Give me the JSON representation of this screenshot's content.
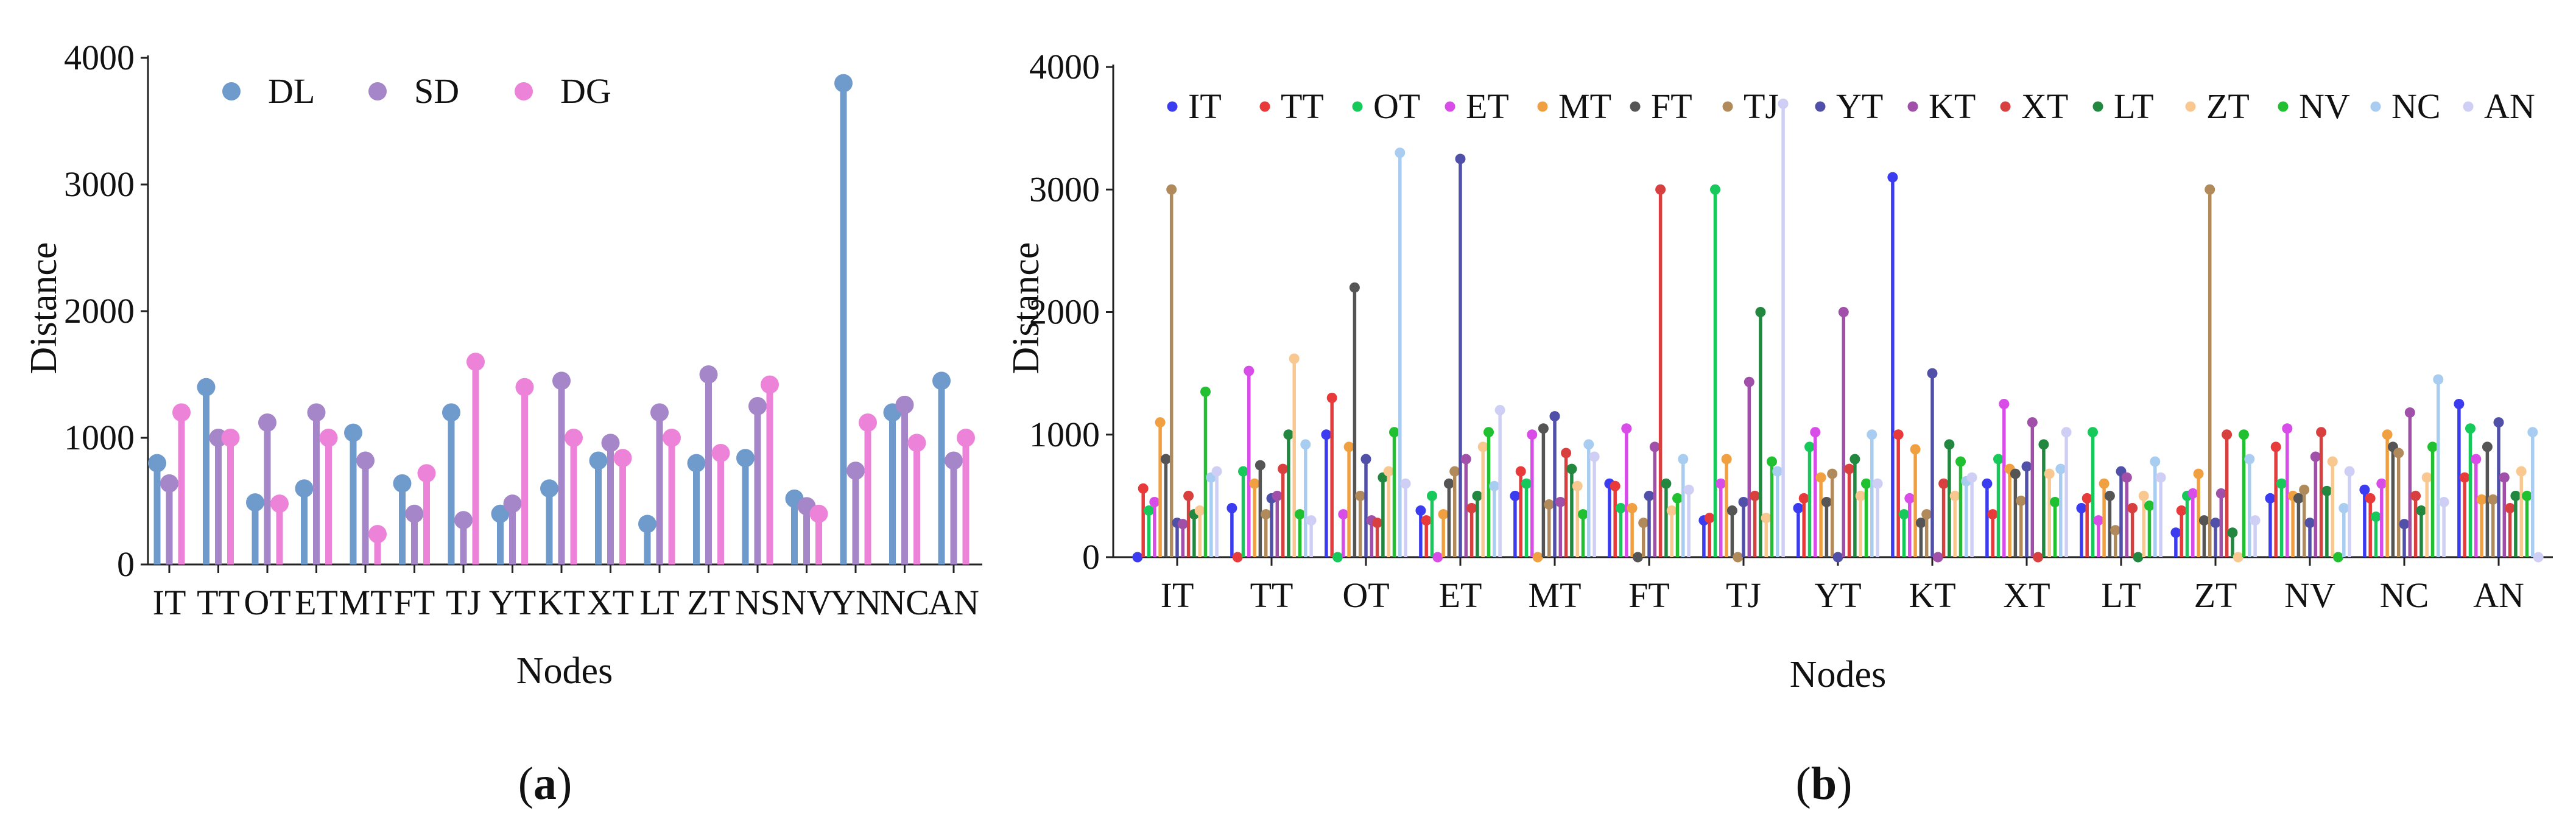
{
  "captions": {
    "a": {
      "open": "(",
      "letter": "a",
      "close": ")"
    },
    "b": {
      "open": "(",
      "letter": "b",
      "close": ")"
    }
  },
  "chart_data": [
    {
      "id": "a",
      "type": "lollipop",
      "title": "",
      "xlabel": "Nodes",
      "ylabel": "Distance",
      "ylim": [
        0,
        4000
      ],
      "yticks": [
        0,
        1000,
        2000,
        3000,
        4000
      ],
      "grid": false,
      "legend_position": "top-left",
      "categories": [
        "IT",
        "TT",
        "OT",
        "ET",
        "MT",
        "FT",
        "TJ",
        "YT",
        "KT",
        "XT",
        "LT",
        "ZT",
        "NS",
        "NV",
        "YN",
        "NC",
        "AN"
      ],
      "series": [
        {
          "name": "DL",
          "color": "#6f9bcc",
          "values": [
            800,
            1400,
            490,
            600,
            1040,
            640,
            1200,
            400,
            600,
            820,
            320,
            800,
            840,
            520,
            3800,
            1200,
            1450
          ]
        },
        {
          "name": "SD",
          "color": "#a586c8",
          "values": [
            640,
            1000,
            1120,
            1200,
            820,
            400,
            350,
            480,
            1450,
            960,
            1200,
            1500,
            1250,
            460,
            740,
            1260,
            820
          ]
        },
        {
          "name": "DG",
          "color": "#ec83d8",
          "values": [
            1200,
            1000,
            480,
            1000,
            240,
            720,
            1600,
            1400,
            1000,
            840,
            1000,
            880,
            1420,
            400,
            1120,
            960,
            1000
          ]
        }
      ]
    },
    {
      "id": "b",
      "type": "lollipop",
      "title": "",
      "xlabel": "Nodes",
      "ylabel": "Distance",
      "ylim": [
        0,
        4000
      ],
      "yticks": [
        0,
        1000,
        2000,
        3000,
        4000
      ],
      "grid": false,
      "legend_position": "top",
      "categories": [
        "IT",
        "TT",
        "OT",
        "ET",
        "MT",
        "FT",
        "TJ",
        "YT",
        "KT",
        "XT",
        "LT",
        "ZT",
        "NV",
        "NC",
        "AN"
      ],
      "series": [
        {
          "name": "IT",
          "color": "#3b3bf0",
          "values": [
            0,
            400,
            1000,
            380,
            500,
            600,
            300,
            400,
            3100,
            600,
            400,
            200,
            480,
            550,
            1250
          ]
        },
        {
          "name": "TT",
          "color": "#e83a3a",
          "values": [
            560,
            0,
            1300,
            300,
            700,
            580,
            320,
            480,
            1000,
            350,
            480,
            380,
            900,
            480,
            650
          ]
        },
        {
          "name": "OT",
          "color": "#16c95a",
          "values": [
            380,
            700,
            0,
            500,
            600,
            400,
            3000,
            900,
            350,
            800,
            1020,
            500,
            600,
            330,
            1050
          ]
        },
        {
          "name": "ET",
          "color": "#d84ce8",
          "values": [
            450,
            1520,
            350,
            0,
            1000,
            1050,
            600,
            1020,
            480,
            1250,
            300,
            520,
            1050,
            600,
            800
          ]
        },
        {
          "name": "MT",
          "color": "#f0a040",
          "values": [
            1100,
            600,
            900,
            350,
            0,
            400,
            800,
            650,
            880,
            720,
            600,
            680,
            500,
            1000,
            470
          ]
        },
        {
          "name": "FT",
          "color": "#555555",
          "values": [
            800,
            750,
            2200,
            600,
            1050,
            0,
            380,
            450,
            280,
            680,
            500,
            300,
            480,
            900,
            900
          ]
        },
        {
          "name": "TJ",
          "color": "#b08a5a",
          "values": [
            3000,
            350,
            500,
            700,
            430,
            280,
            0,
            680,
            350,
            460,
            220,
            3000,
            550,
            850,
            470
          ]
        },
        {
          "name": "YT",
          "color": "#5050a8",
          "values": [
            280,
            480,
            800,
            3250,
            1150,
            500,
            450,
            0,
            1500,
            740,
            700,
            280,
            280,
            270,
            1100
          ]
        },
        {
          "name": "KT",
          "color": "#a050a8",
          "values": [
            270,
            500,
            300,
            800,
            450,
            900,
            1430,
            2000,
            0,
            1100,
            650,
            520,
            820,
            1180,
            650
          ]
        },
        {
          "name": "XT",
          "color": "#d84040",
          "values": [
            500,
            720,
            280,
            400,
            850,
            3000,
            500,
            720,
            600,
            0,
            400,
            1000,
            1020,
            500,
            400
          ]
        },
        {
          "name": "LT",
          "color": "#228840",
          "values": [
            350,
            1000,
            650,
            500,
            720,
            600,
            2000,
            800,
            920,
            920,
            0,
            200,
            540,
            380,
            500
          ]
        },
        {
          "name": "ZT",
          "color": "#f8c890",
          "values": [
            380,
            1620,
            700,
            900,
            580,
            380,
            320,
            500,
            500,
            680,
            500,
            0,
            780,
            650,
            700
          ]
        },
        {
          "name": "NV",
          "color": "#20c030",
          "values": [
            1350,
            350,
            1020,
            1020,
            350,
            480,
            780,
            600,
            780,
            450,
            420,
            1000,
            0,
            900,
            500
          ]
        },
        {
          "name": "NC",
          "color": "#a8cdf0",
          "values": [
            650,
            920,
            3300,
            580,
            920,
            800,
            700,
            1000,
            620,
            720,
            780,
            800,
            400,
            1450,
            1020
          ]
        },
        {
          "name": "AN",
          "color": "#cfcff5",
          "values": [
            700,
            300,
            600,
            1200,
            820,
            550,
            3700,
            600,
            650,
            1020,
            650,
            300,
            700,
            450,
            0
          ]
        }
      ]
    }
  ]
}
